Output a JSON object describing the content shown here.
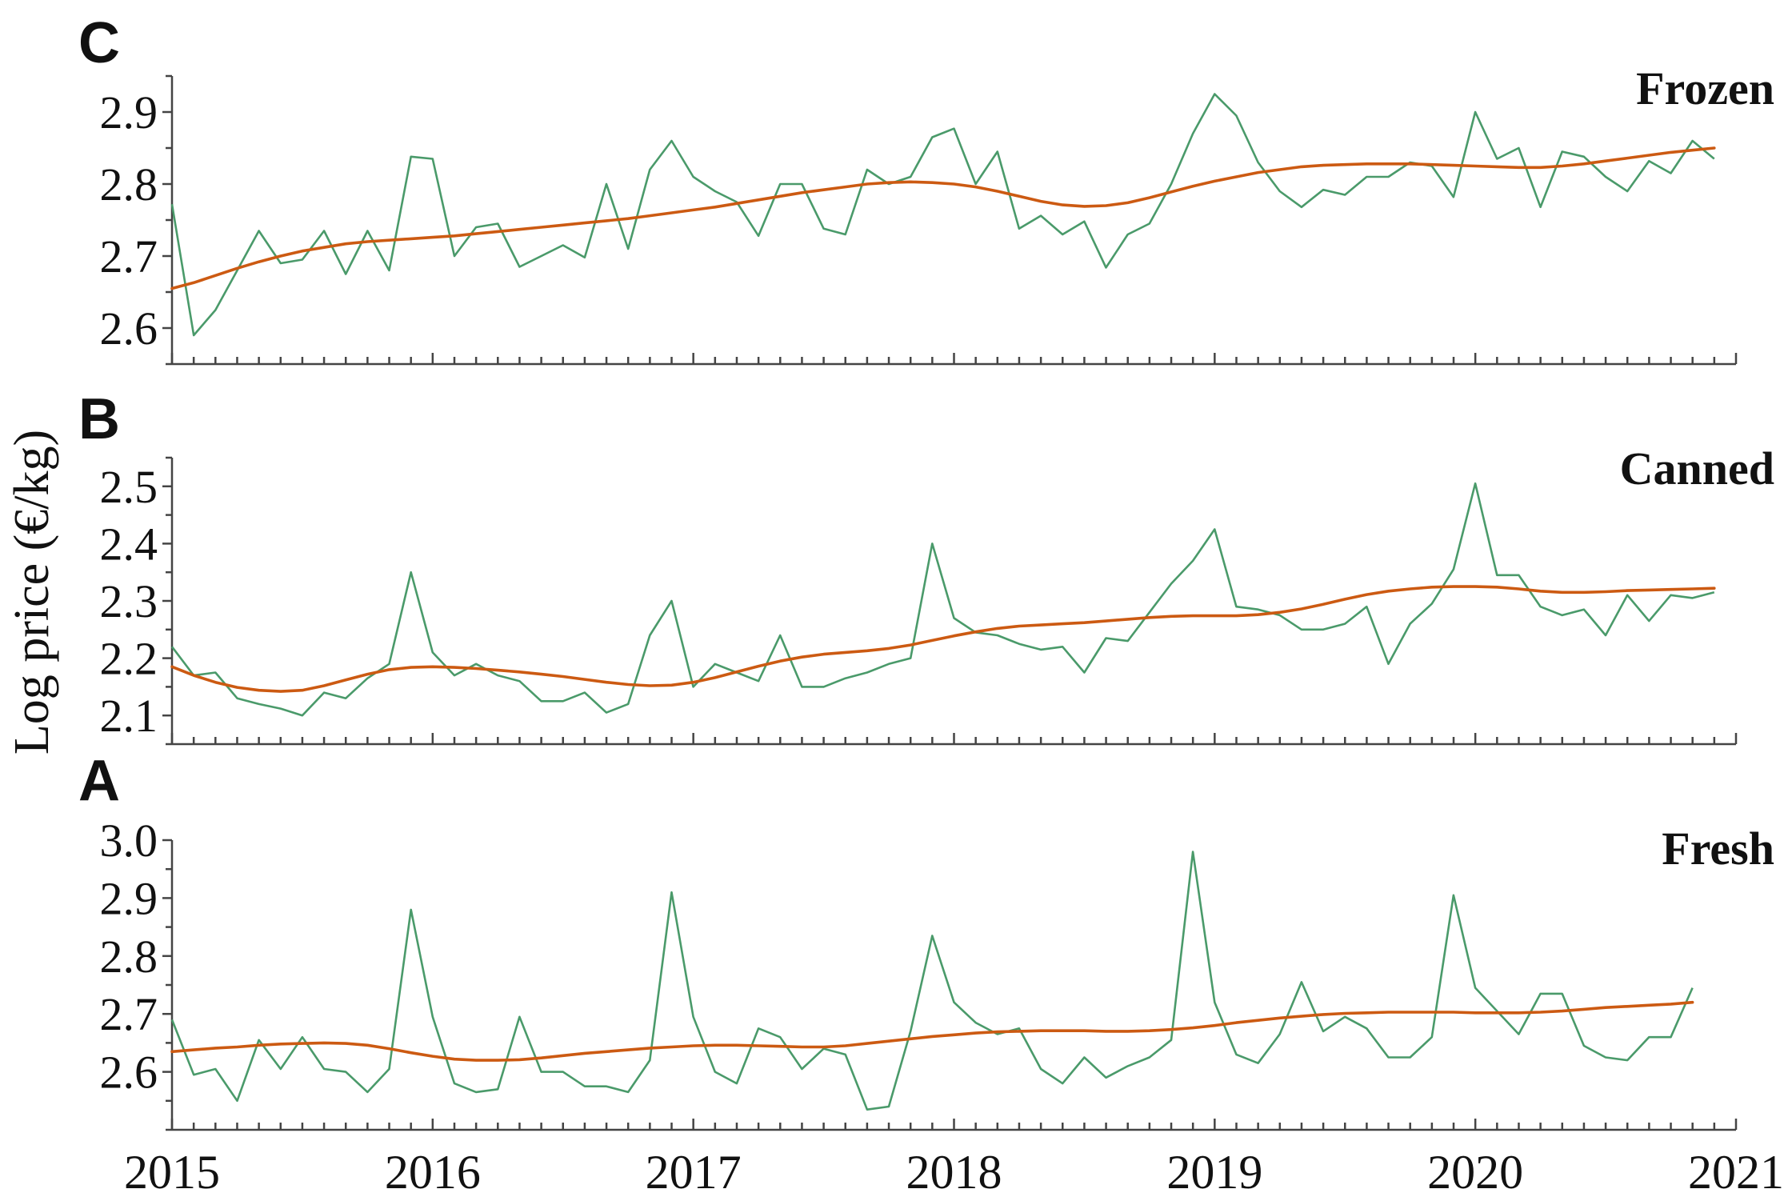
{
  "chart_data": {
    "type": "line",
    "ylabel": "Log price (€/kg)",
    "x_tick_labels": [
      "2015",
      "2016",
      "2017",
      "2018",
      "2019",
      "2020",
      "2021"
    ],
    "colors": {
      "raw": "#4a9a6a",
      "trend": "#cc5a12"
    },
    "panels": [
      {
        "letter": "C",
        "title": "Frozen",
        "ylim": [
          2.55,
          2.95
        ],
        "yticks": [
          2.6,
          2.7,
          2.8,
          2.9
        ],
        "ytick_labels": [
          "2.6",
          "2.7",
          "2.8",
          "2.9"
        ],
        "x_start": 2015.0,
        "x_step": 0.08333,
        "series": [
          {
            "name": "Monthly log price",
            "values": [
              2.772,
              2.59,
              2.625,
              2.68,
              2.735,
              2.69,
              2.695,
              2.735,
              2.675,
              2.735,
              2.68,
              2.838,
              2.835,
              2.7,
              2.74,
              2.745,
              2.685,
              2.7,
              2.715,
              2.698,
              2.8,
              2.71,
              2.82,
              2.86,
              2.81,
              2.79,
              2.775,
              2.728,
              2.8,
              2.8,
              2.738,
              2.73,
              2.82,
              2.8,
              2.81,
              2.865,
              2.877,
              2.8,
              2.845,
              2.738,
              2.756,
              2.73,
              2.748,
              2.684,
              2.73,
              2.745,
              2.8,
              2.87,
              2.925,
              2.895,
              2.83,
              2.79,
              2.768,
              2.792,
              2.785,
              2.81,
              2.81,
              2.83,
              2.825,
              2.782,
              2.9,
              2.835,
              2.85,
              2.768,
              2.845,
              2.838,
              2.81,
              2.79,
              2.832,
              2.815,
              2.86,
              2.835
            ]
          },
          {
            "name": "Trend",
            "values": [
              2.655,
              2.663,
              2.673,
              2.683,
              2.692,
              2.7,
              2.707,
              2.712,
              2.717,
              2.72,
              2.722,
              2.724,
              2.726,
              2.728,
              2.731,
              2.734,
              2.737,
              2.74,
              2.743,
              2.746,
              2.749,
              2.752,
              2.756,
              2.76,
              2.764,
              2.768,
              2.773,
              2.778,
              2.783,
              2.788,
              2.792,
              2.796,
              2.8,
              2.802,
              2.803,
              2.802,
              2.8,
              2.796,
              2.79,
              2.783,
              2.776,
              2.771,
              2.769,
              2.77,
              2.774,
              2.781,
              2.789,
              2.797,
              2.804,
              2.81,
              2.816,
              2.82,
              2.824,
              2.826,
              2.827,
              2.828,
              2.828,
              2.828,
              2.827,
              2.826,
              2.825,
              2.824,
              2.823,
              2.823,
              2.825,
              2.828,
              2.832,
              2.836,
              2.84,
              2.844,
              2.847,
              2.85
            ]
          }
        ]
      },
      {
        "letter": "B",
        "title": "Canned",
        "ylim": [
          2.05,
          2.55
        ],
        "yticks": [
          2.1,
          2.2,
          2.3,
          2.4,
          2.5
        ],
        "ytick_labels": [
          "2.1",
          "2.2",
          "2.3",
          "2.4",
          "2.5"
        ],
        "x_start": 2015.0,
        "x_step": 0.08333,
        "series": [
          {
            "name": "Monthly log price",
            "values": [
              2.22,
              2.17,
              2.175,
              2.13,
              2.12,
              2.112,
              2.1,
              2.14,
              2.13,
              2.165,
              2.19,
              2.35,
              2.21,
              2.17,
              2.19,
              2.17,
              2.16,
              2.125,
              2.125,
              2.14,
              2.105,
              2.12,
              2.24,
              2.3,
              2.15,
              2.19,
              2.175,
              2.16,
              2.24,
              2.15,
              2.15,
              2.165,
              2.175,
              2.19,
              2.2,
              2.4,
              2.27,
              2.245,
              2.24,
              2.225,
              2.215,
              2.22,
              2.175,
              2.235,
              2.23,
              2.28,
              2.33,
              2.37,
              2.425,
              2.29,
              2.285,
              2.275,
              2.25,
              2.25,
              2.26,
              2.29,
              2.19,
              2.26,
              2.295,
              2.355,
              2.505,
              2.345,
              2.345,
              2.29,
              2.275,
              2.285,
              2.24,
              2.31,
              2.265,
              2.31,
              2.305,
              2.315
            ]
          },
          {
            "name": "Trend",
            "values": [
              2.185,
              2.17,
              2.158,
              2.149,
              2.144,
              2.142,
              2.144,
              2.152,
              2.162,
              2.172,
              2.18,
              2.184,
              2.185,
              2.184,
              2.182,
              2.179,
              2.176,
              2.172,
              2.168,
              2.163,
              2.158,
              2.154,
              2.152,
              2.153,
              2.158,
              2.166,
              2.176,
              2.186,
              2.195,
              2.202,
              2.207,
              2.21,
              2.213,
              2.217,
              2.223,
              2.231,
              2.239,
              2.246,
              2.252,
              2.256,
              2.258,
              2.26,
              2.262,
              2.265,
              2.268,
              2.271,
              2.273,
              2.274,
              2.274,
              2.274,
              2.276,
              2.28,
              2.286,
              2.294,
              2.303,
              2.311,
              2.317,
              2.321,
              2.324,
              2.325,
              2.325,
              2.324,
              2.321,
              2.317,
              2.315,
              2.315,
              2.316,
              2.318,
              2.319,
              2.32,
              2.321,
              2.322
            ]
          }
        ]
      },
      {
        "letter": "A",
        "title": "Fresh",
        "ylim": [
          2.5,
          3.0
        ],
        "yticks": [
          2.6,
          2.7,
          2.8,
          2.9,
          3.0
        ],
        "ytick_labels": [
          "2.6",
          "2.7",
          "2.8",
          "2.9",
          "3.0"
        ],
        "x_start": 2015.0,
        "x_step": 0.08333,
        "series": [
          {
            "name": "Monthly log price",
            "values": [
              2.69,
              2.595,
              2.605,
              2.55,
              2.655,
              2.605,
              2.66,
              2.605,
              2.6,
              2.565,
              2.605,
              2.88,
              2.695,
              2.58,
              2.565,
              2.57,
              2.695,
              2.6,
              2.6,
              2.575,
              2.575,
              2.565,
              2.62,
              2.91,
              2.695,
              2.6,
              2.58,
              2.675,
              2.66,
              2.605,
              2.64,
              2.63,
              2.535,
              2.54,
              2.67,
              2.835,
              2.72,
              2.685,
              2.665,
              2.675,
              2.605,
              2.58,
              2.625,
              2.59,
              2.61,
              2.625,
              2.655,
              2.98,
              2.72,
              2.63,
              2.615,
              2.665,
              2.755,
              2.67,
              2.695,
              2.675,
              2.625,
              2.625,
              2.66,
              2.905,
              2.745,
              2.705,
              2.665,
              2.735,
              2.735,
              2.645,
              2.625,
              2.62,
              2.66,
              2.66,
              2.745
            ]
          },
          {
            "name": "Trend",
            "values": [
              2.635,
              2.638,
              2.641,
              2.643,
              2.646,
              2.648,
              2.649,
              2.65,
              2.649,
              2.646,
              2.64,
              2.633,
              2.627,
              2.622,
              2.62,
              2.62,
              2.621,
              2.624,
              2.628,
              2.632,
              2.635,
              2.638,
              2.641,
              2.643,
              2.645,
              2.646,
              2.646,
              2.645,
              2.644,
              2.643,
              2.643,
              2.645,
              2.649,
              2.653,
              2.657,
              2.661,
              2.664,
              2.667,
              2.669,
              2.67,
              2.671,
              2.671,
              2.671,
              2.67,
              2.67,
              2.671,
              2.673,
              2.676,
              2.68,
              2.685,
              2.689,
              2.693,
              2.696,
              2.699,
              2.701,
              2.702,
              2.703,
              2.703,
              2.703,
              2.703,
              2.702,
              2.702,
              2.702,
              2.703,
              2.705,
              2.708,
              2.711,
              2.713,
              2.715,
              2.717,
              2.72
            ]
          }
        ]
      }
    ]
  }
}
